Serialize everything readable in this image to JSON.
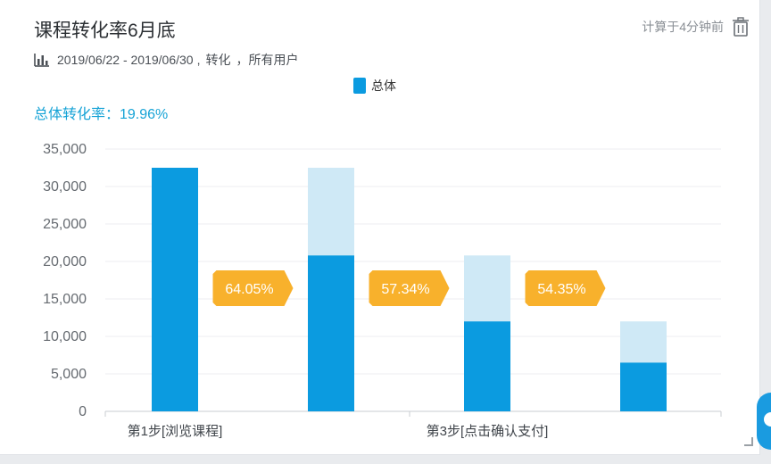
{
  "header": {
    "title": "课程转化率6月底",
    "computed_text": "计算于4分钟前"
  },
  "meta": {
    "date_range": "2019/06/22 - 2019/06/30",
    "separator": ",",
    "type": "转化",
    "audience": "，所有用户"
  },
  "summary": {
    "overall_label": "总体转化率：19.96%"
  },
  "icons": {
    "chart": "bar-chart-icon",
    "trash": "trash-icon"
  },
  "colors": {
    "primary": "#0b9be0",
    "light": "#cfe9f6",
    "rate_tag": "#f8b12c",
    "accent_text": "#16a3d6"
  },
  "chart_data": {
    "type": "bar",
    "categories": [
      "第1步[浏览课程]",
      "",
      "第3步[点击确认支付]",
      ""
    ],
    "x_tick_labels": [
      "第1步[浏览课程]",
      "第3步[点击确认支付]"
    ],
    "series": [
      {
        "name": "总体",
        "values": [
          32500,
          20800,
          12000,
          6500
        ]
      }
    ],
    "previous_step_values": [
      null,
      32500,
      20800,
      12000
    ],
    "conversion_rates": [
      "64.05%",
      "57.34%",
      "54.35%"
    ],
    "ylim": [
      0,
      35000
    ],
    "yticks": [
      0,
      5000,
      10000,
      15000,
      20000,
      25000,
      30000,
      35000
    ],
    "ytick_labels": [
      "0",
      "5,000",
      "10,000",
      "15,000",
      "20,000",
      "25,000",
      "30,000",
      "35,000"
    ],
    "legend": [
      "总体"
    ],
    "legend_position": "top-center",
    "grid": true
  }
}
